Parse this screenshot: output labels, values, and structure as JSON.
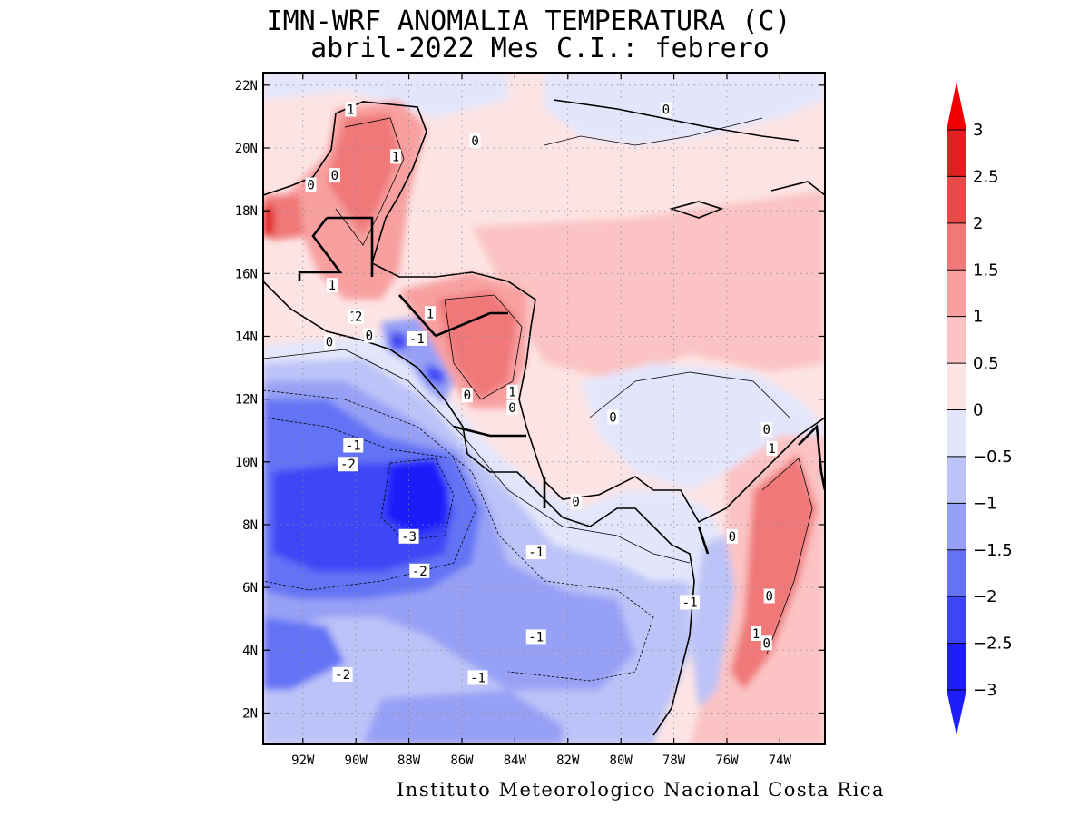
{
  "title_line_1": "IMN-WRF  ANOMALIA TEMPERATURA (C)",
  "title_line_2": "abril-2022 Mes C.I.: febrero",
  "credit": "Instituto Meteorologico Nacional Costa Rica",
  "colors": {
    "c_m3": "#1e1efa",
    "c_m25": "#3c46f5",
    "c_m2": "#6473f5",
    "c_m15": "#96a0f5",
    "c_m1": "#bcc3f8",
    "c_m05": "#e3e6fb",
    "c_0": "#fde4e4",
    "c_05": "#fbc3c3",
    "c_1": "#f8a0a0",
    "c_15": "#f07878",
    "c_2": "#e84a4a",
    "c_25": "#e02020",
    "c_3": "#f00000"
  },
  "chart_data": {
    "type": "heatmap",
    "lon_ticks": [
      "92W",
      "90W",
      "88W",
      "86W",
      "84W",
      "82W",
      "80W",
      "78W",
      "76W",
      "74W"
    ],
    "lat_ticks": [
      "22N",
      "20N",
      "18N",
      "16N",
      "14N",
      "12N",
      "10N",
      "8N",
      "6N",
      "4N",
      "2N"
    ],
    "colorbar_labels": [
      "3",
      "2.5",
      "2",
      "1.5",
      "1",
      "0.5",
      "0",
      "-0.5",
      "-1",
      "-1.5",
      "-2",
      "-2.5",
      "-3"
    ],
    "colorbar_range": [
      -3,
      3
    ],
    "contour_labels": [
      {
        "text": "1",
        "lon": -90.2,
        "lat": 21.2
      },
      {
        "text": "1",
        "lon": -88.5,
        "lat": 19.7
      },
      {
        "text": "0",
        "lon": -90.8,
        "lat": 19.1
      },
      {
        "text": "0",
        "lon": -91.7,
        "lat": 18.8
      },
      {
        "text": "0",
        "lon": -85.5,
        "lat": 20.2
      },
      {
        "text": "0",
        "lon": -78.3,
        "lat": 21.2
      },
      {
        "text": "1",
        "lon": -90.9,
        "lat": 15.6
      },
      {
        "text": "1",
        "lon": -90.1,
        "lat": 14.6
      },
      {
        "text": "2",
        "lon": -89.9,
        "lat": 14.6
      },
      {
        "text": "0",
        "lon": -89.5,
        "lat": 14.0
      },
      {
        "text": "0",
        "lon": -91.0,
        "lat": 13.8
      },
      {
        "text": "1",
        "lon": -87.2,
        "lat": 14.7
      },
      {
        "text": "-1",
        "lon": -87.7,
        "lat": 13.9
      },
      {
        "text": "0",
        "lon": -85.8,
        "lat": 12.1
      },
      {
        "text": "1",
        "lon": -84.1,
        "lat": 12.2
      },
      {
        "text": "0",
        "lon": -84.1,
        "lat": 11.7
      },
      {
        "text": "0",
        "lon": -80.3,
        "lat": 11.4
      },
      {
        "text": "-1",
        "lon": -90.1,
        "lat": 10.5
      },
      {
        "text": "-2",
        "lon": -90.3,
        "lat": 9.9
      },
      {
        "text": "-3",
        "lon": -88.0,
        "lat": 7.6
      },
      {
        "text": "-2",
        "lon": -87.6,
        "lat": 6.5
      },
      {
        "text": "0",
        "lon": -81.7,
        "lat": 8.7
      },
      {
        "text": "-1",
        "lon": -83.2,
        "lat": 7.1
      },
      {
        "text": "-1",
        "lon": -83.2,
        "lat": 4.4
      },
      {
        "text": "-1",
        "lon": -77.4,
        "lat": 5.5
      },
      {
        "text": "-1",
        "lon": -85.4,
        "lat": 3.1
      },
      {
        "text": "-2",
        "lon": -90.5,
        "lat": 3.2
      },
      {
        "text": "0",
        "lon": -75.8,
        "lat": 7.6
      },
      {
        "text": "1",
        "lon": -74.3,
        "lat": 10.4
      },
      {
        "text": "0",
        "lon": -74.5,
        "lat": 11.0
      },
      {
        "text": "0",
        "lon": -74.4,
        "lat": 5.7
      },
      {
        "text": "1",
        "lon": -74.9,
        "lat": 4.5
      },
      {
        "text": "0",
        "lon": -74.5,
        "lat": 4.2
      }
    ],
    "grid": true
  }
}
